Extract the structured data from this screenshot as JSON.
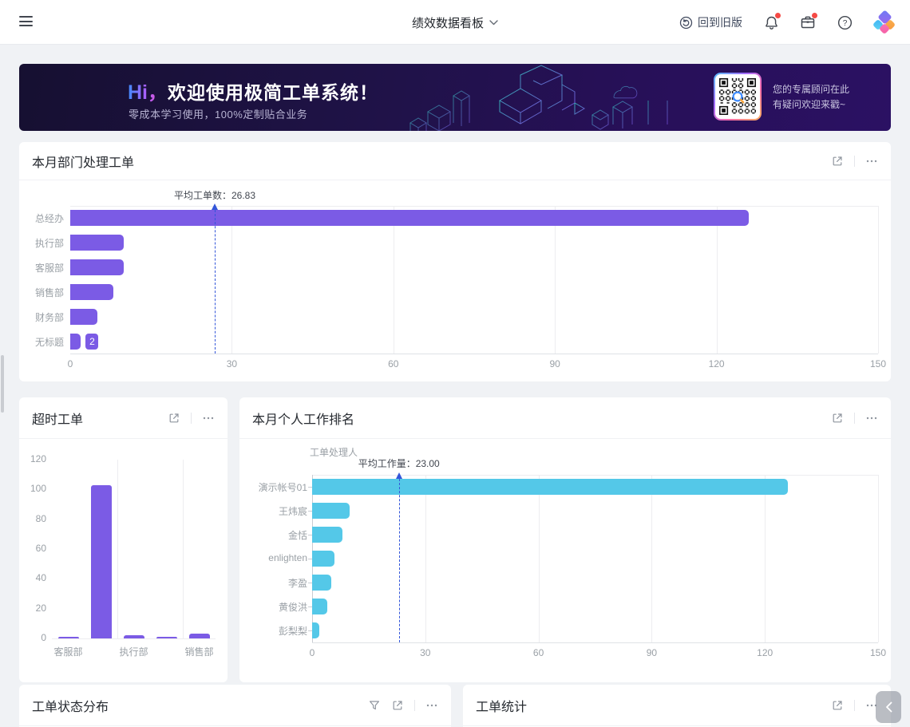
{
  "navbar": {
    "title": "绩效数据看板",
    "back_to_old_label": "回到旧版"
  },
  "banner": {
    "hi": "Hi，",
    "title": "欢迎使用极简工单系统！",
    "subtitle": "零成本学习使用，100%定制贴合业务",
    "consultant_line1": "您的专属顾问在此",
    "consultant_line2": "有疑问欢迎来戳~"
  },
  "cards": {
    "dept": {
      "title": "本月部门处理工单"
    },
    "overtime": {
      "title": "超时工单"
    },
    "personal": {
      "title": "本月个人工作排名"
    },
    "status": {
      "title": "工单状态分布"
    },
    "stats": {
      "title": "工单统计"
    }
  },
  "icons": {
    "menu": "hamburger-icon",
    "title_dropdown": "chevron-down-icon",
    "back": "restore-circle-arrow-icon",
    "notifications": "bell-icon",
    "messages": "briefcase-icon",
    "help": "question-circle-icon",
    "card_expand": "open-in-new-icon",
    "card_more": "ellipsis-icon",
    "card_filter": "funnel-icon",
    "panel_collapse": "chevron-left-icon"
  },
  "colors": {
    "purple_bar": "#7b5be5",
    "cyan_bar": "#54c8e8",
    "average_line": "#3356d9",
    "badge_red": "#f54a45",
    "banner_bg_from": "#161031",
    "banner_bg_to": "#2b1163"
  },
  "chart_data": [
    {
      "type": "bar",
      "orientation": "horizontal",
      "title": "本月部门处理工单",
      "categories": [
        "总经办",
        "执行部",
        "客服部",
        "销售部",
        "财务部",
        "无标题"
      ],
      "values": [
        126,
        10,
        10,
        8,
        5,
        2
      ],
      "xlabel": "",
      "ylabel": "",
      "xlim": [
        0,
        150
      ],
      "xticks": [
        0,
        30,
        60,
        90,
        120,
        150
      ],
      "grid": true,
      "bar_color": "#7b5be5",
      "average_line": {
        "value": 26.83,
        "label": "平均工单数：26.83"
      },
      "data_label": {
        "category": "无标题",
        "text": "2"
      }
    },
    {
      "type": "bar",
      "orientation": "vertical",
      "title": "超时工单",
      "categories": [
        "客服部",
        "",
        "执行部",
        "",
        "销售部"
      ],
      "values": [
        1,
        103,
        2,
        1,
        3
      ],
      "xlabel": "",
      "ylabel": "",
      "ylim": [
        0,
        120
      ],
      "yticks": [
        0,
        20,
        40,
        60,
        80,
        100,
        120
      ],
      "grid": true,
      "bar_color": "#7b5be5"
    },
    {
      "type": "bar",
      "orientation": "horizontal",
      "title": "本月个人工作排名",
      "axis_name": "工单处理人",
      "categories": [
        "演示帐号01",
        "王炜宸",
        "金恬",
        "enlighten",
        "李盈",
        "黄俊洪",
        "彭梨梨"
      ],
      "values": [
        126,
        10,
        8,
        6,
        5,
        4,
        2
      ],
      "xlabel": "",
      "ylabel": "工单处理人",
      "xlim": [
        0,
        150
      ],
      "xticks": [
        0,
        30,
        60,
        90,
        120,
        150
      ],
      "grid": true,
      "bar_color": "#54c8e8",
      "average_line": {
        "value": 23.0,
        "label": "平均工作量：23.00"
      }
    }
  ]
}
